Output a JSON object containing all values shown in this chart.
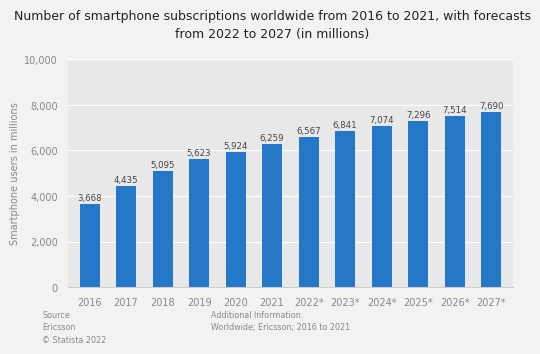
{
  "title": "Number of smartphone subscriptions worldwide from 2016 to 2021, with forecasts\nfrom 2022 to 2027 (in millions)",
  "ylabel": "Smartphone users in millions",
  "categories": [
    "2016",
    "2017",
    "2018",
    "2019",
    "2020",
    "2021",
    "2022*",
    "2023*",
    "2024*",
    "2025*",
    "2026*",
    "2027*"
  ],
  "values": [
    3668,
    4435,
    5095,
    5623,
    5924,
    6259,
    6567,
    6841,
    7074,
    7296,
    7514,
    7690
  ],
  "bar_color": "#2577c8",
  "background_color": "#f2f2f2",
  "plot_bg_color": "#e8e8e8",
  "ylim": [
    0,
    10000
  ],
  "yticks": [
    0,
    2000,
    4000,
    6000,
    8000,
    10000
  ],
  "source_text": "Source\nEricsson\n© Statista 2022",
  "additional_text": "Additional Information:\nWorldwide; Ericsson; 2016 to 2021",
  "title_fontsize": 9.0,
  "ylabel_fontsize": 7.0,
  "bar_label_fontsize": 6.2,
  "tick_fontsize": 7.0,
  "footer_fontsize": 5.8,
  "grid_color": "#ffffff",
  "tick_color": "#888888",
  "spine_color": "#cccccc"
}
